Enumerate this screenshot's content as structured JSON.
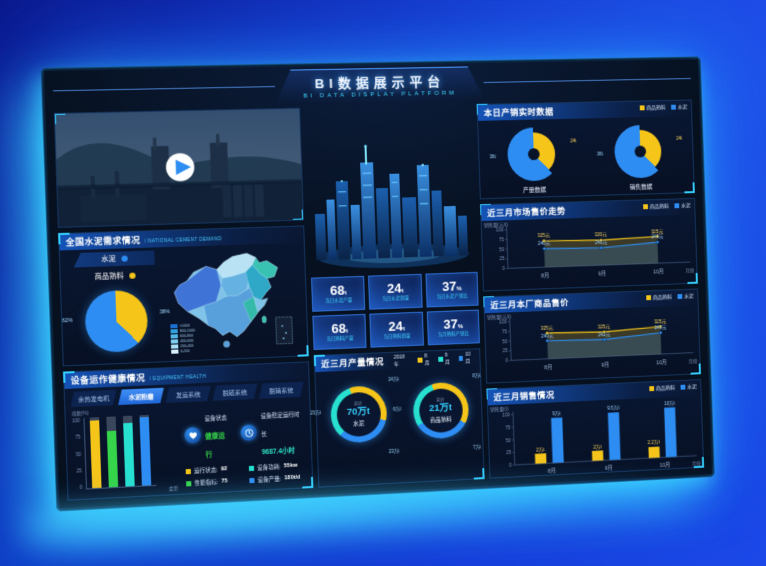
{
  "header": {
    "title": "BI数据展示平台",
    "subtitle": "BI DATA DISPLAY PLATFORM"
  },
  "left": {
    "video": {
      "play_icon": "play"
    },
    "demand": {
      "title": "全国水泥需求情况",
      "subtitle": "/ NATIONAL CEMENT DEMAND",
      "legend": [
        {
          "label": "水泥",
          "color": "#2e8df2"
        },
        {
          "label": "商品熟料",
          "color": "#f5c51a"
        }
      ],
      "pie": {
        "type": "pie",
        "labels": [
          "水泥",
          "商品熟料"
        ],
        "values": [
          62,
          38
        ],
        "value_labels": [
          "62%",
          "38%"
        ],
        "colors": [
          "#2e8df2",
          "#f5c51a"
        ]
      },
      "map_legend": [
        {
          "label": ">1000",
          "color": "#1b6fd0"
        },
        {
          "label": "800-1000",
          "color": "#2fa0dc"
        },
        {
          "label": "600-800",
          "color": "#4fb6e6"
        },
        {
          "label": "400-600",
          "color": "#7ccdf0"
        },
        {
          "label": "200-400",
          "color": "#a8dff6"
        },
        {
          "label": "0-200",
          "color": "#d5effb"
        }
      ]
    },
    "equipment": {
      "title": "设备运作健康情况",
      "subtitle": "/ EQUIPMENT HEALTH",
      "tabs": [
        {
          "label": "余热发电机",
          "active": false
        },
        {
          "label": "水泥粉磨",
          "active": true
        },
        {
          "label": "发运系统",
          "active": false
        },
        {
          "label": "脱硫系统",
          "active": false
        },
        {
          "label": "脱硝系统",
          "active": false
        }
      ],
      "bar_chart": {
        "type": "bar",
        "ylabel": "指数(%)",
        "xlabel": "类型",
        "ylim": [
          0,
          100
        ],
        "yticks": [
          0,
          25,
          50,
          75,
          100
        ],
        "values": [
          95,
          80,
          90,
          97
        ],
        "colors": [
          "#f5c51a",
          "#35d44a",
          "#27e0d0",
          "#2e8df2"
        ]
      },
      "status": [
        {
          "icon": "heart-icon",
          "label": "设备状态",
          "value": "健康运行"
        },
        {
          "icon": "clock-icon",
          "label": "设备稳定运行时长",
          "value": "9687.4小时"
        }
      ],
      "metrics": [
        {
          "label": "运行状态:",
          "value": "92",
          "color": "#f5c51a"
        },
        {
          "label": "性能指标:",
          "value": "75",
          "color": "#35d44a"
        },
        {
          "label": "设备功耗:",
          "value": "55kw",
          "color": "#27e0d0"
        },
        {
          "label": "设备产量:",
          "value": "180t/d",
          "color": "#2e8df2"
        }
      ]
    }
  },
  "center": {
    "stats": [
      {
        "value": "68",
        "unit": "t",
        "label": "当日水泥产量"
      },
      {
        "value": "24",
        "unit": "t",
        "label": "当日水泥销量"
      },
      {
        "value": "37",
        "unit": "%",
        "label": "当日水泥产销比"
      },
      {
        "value": "68",
        "unit": "t",
        "label": "当日熟料产量"
      },
      {
        "value": "24",
        "unit": "t",
        "label": "当日熟料销量"
      },
      {
        "value": "37",
        "unit": "%",
        "label": "当月熟料产销比"
      }
    ],
    "production": {
      "title": "近三月产量情况",
      "year": "2018年",
      "legend": [
        {
          "label": "8月",
          "color": "#f5c51a"
        },
        {
          "label": "9月",
          "color": "#27e0d0"
        },
        {
          "label": "10月",
          "color": "#2e8df2"
        }
      ],
      "gauges": [
        {
          "total_label": "总计",
          "total": "70万t",
          "name": "水泥",
          "values": [
            24,
            23,
            23
          ],
          "value_labels": [
            "24万t",
            "23万t",
            "23万t"
          ]
        },
        {
          "total_label": "总计",
          "total": "21万t",
          "name": "商品熟料",
          "values": [
            8,
            6,
            7
          ],
          "value_labels": [
            "8万t",
            "6万t",
            "7万t"
          ]
        }
      ]
    }
  },
  "right": {
    "realtime": {
      "title": "本日产销实时数据",
      "legend": [
        {
          "label": "商品熟料",
          "color": "#f5c51a"
        },
        {
          "label": "水泥",
          "color": "#2e8df2"
        }
      ],
      "charts": [
        {
          "name": "产量数据",
          "yellow_label": "24t",
          "blue_label": "36t",
          "blue_pct": 62
        },
        {
          "name": "销售数据",
          "yellow_label": "24t",
          "blue_label": "36t",
          "blue_pct": 62
        }
      ]
    },
    "market_trend": {
      "title": "近三月市场售价走势",
      "legend": [
        {
          "label": "商品熟料",
          "color": "#f5c51a"
        },
        {
          "label": "水泥",
          "color": "#2e8df2"
        }
      ],
      "chart_data": {
        "type": "line",
        "x": [
          "8月",
          "9月",
          "10月"
        ],
        "xlabel": "月份",
        "ylabel": "销售量(元/t)",
        "yticks": [
          0,
          25,
          50,
          75,
          100
        ],
        "ylim": [
          0,
          100
        ],
        "series": [
          {
            "name": "商品熟料",
            "color": "#f5c51a",
            "values": [
              68,
              65,
              70
            ],
            "labels": [
              "325元",
              "320元",
              "325元"
            ]
          },
          {
            "name": "水泥",
            "color": "#2e8df2",
            "values": [
              48,
              45,
              55
            ],
            "labels": [
              "240元",
              "242元",
              "240元"
            ]
          }
        ]
      }
    },
    "factory_price": {
      "title": "近三月本厂商品售价",
      "legend": [
        {
          "label": "商品熟料",
          "color": "#f5c51a"
        },
        {
          "label": "水泥",
          "color": "#2e8df2"
        }
      ],
      "chart_data": {
        "type": "line",
        "x": [
          "8月",
          "9月",
          "10月"
        ],
        "xlabel": "月份",
        "ylabel": "销售量(元/t)",
        "yticks": [
          0,
          25,
          50,
          75,
          100
        ],
        "ylim": [
          0,
          100
        ],
        "series": [
          {
            "name": "商品熟料",
            "color": "#f5c51a",
            "values": [
              67,
              64,
              72
            ],
            "labels": [
              "325元",
              "325元",
              "325元"
            ]
          },
          {
            "name": "水泥",
            "color": "#2e8df2",
            "values": [
              47,
              44,
              56
            ],
            "labels": [
              "240元",
              "242元",
              "240元"
            ]
          }
        ]
      }
    },
    "sales": {
      "title": "近三月销售情况",
      "legend": [
        {
          "label": "商品熟料",
          "color": "#f5c51a"
        },
        {
          "label": "水泥",
          "color": "#2e8df2"
        }
      ],
      "chart_data": {
        "type": "bar",
        "x": [
          "8月",
          "9月",
          "10月"
        ],
        "xlabel": "月份",
        "ylabel": "销售量(t)",
        "yticks": [
          0,
          25,
          50,
          75,
          100
        ],
        "ylim": [
          0,
          100
        ],
        "series": [
          {
            "name": "商品熟料",
            "color": "#f5c51a",
            "values": [
              20,
              20,
              22
            ],
            "labels": [
              "2万t",
              "2万t",
              "2.2万t"
            ]
          },
          {
            "name": "水泥",
            "color": "#2e8df2",
            "values": [
              90,
              95,
              100
            ],
            "labels": [
              "9万t",
              "9.5万t",
              "10万t"
            ]
          }
        ]
      }
    }
  }
}
